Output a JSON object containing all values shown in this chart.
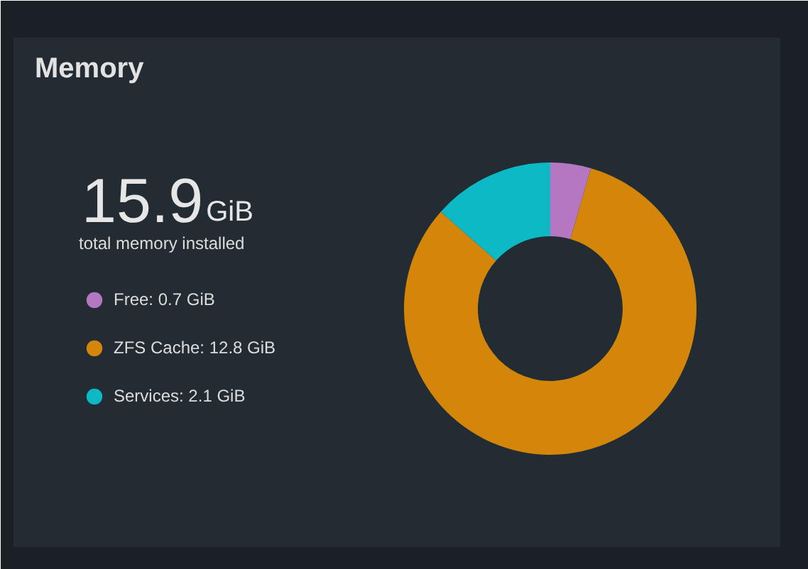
{
  "chart_data": {
    "type": "donut",
    "title": "Memory",
    "categories": [
      "Free: 0.7 GiB",
      "ZFS Cache: 12.8 GiB",
      "Services: 2.1 GiB"
    ],
    "values": [
      0.7,
      12.8,
      2.1
    ],
    "colors": [
      "#b576c2",
      "#d4860b",
      "#0db9c4"
    ],
    "legend": "left",
    "annotations": [
      "15.9GiB",
      "total memory installed"
    ]
  }
}
